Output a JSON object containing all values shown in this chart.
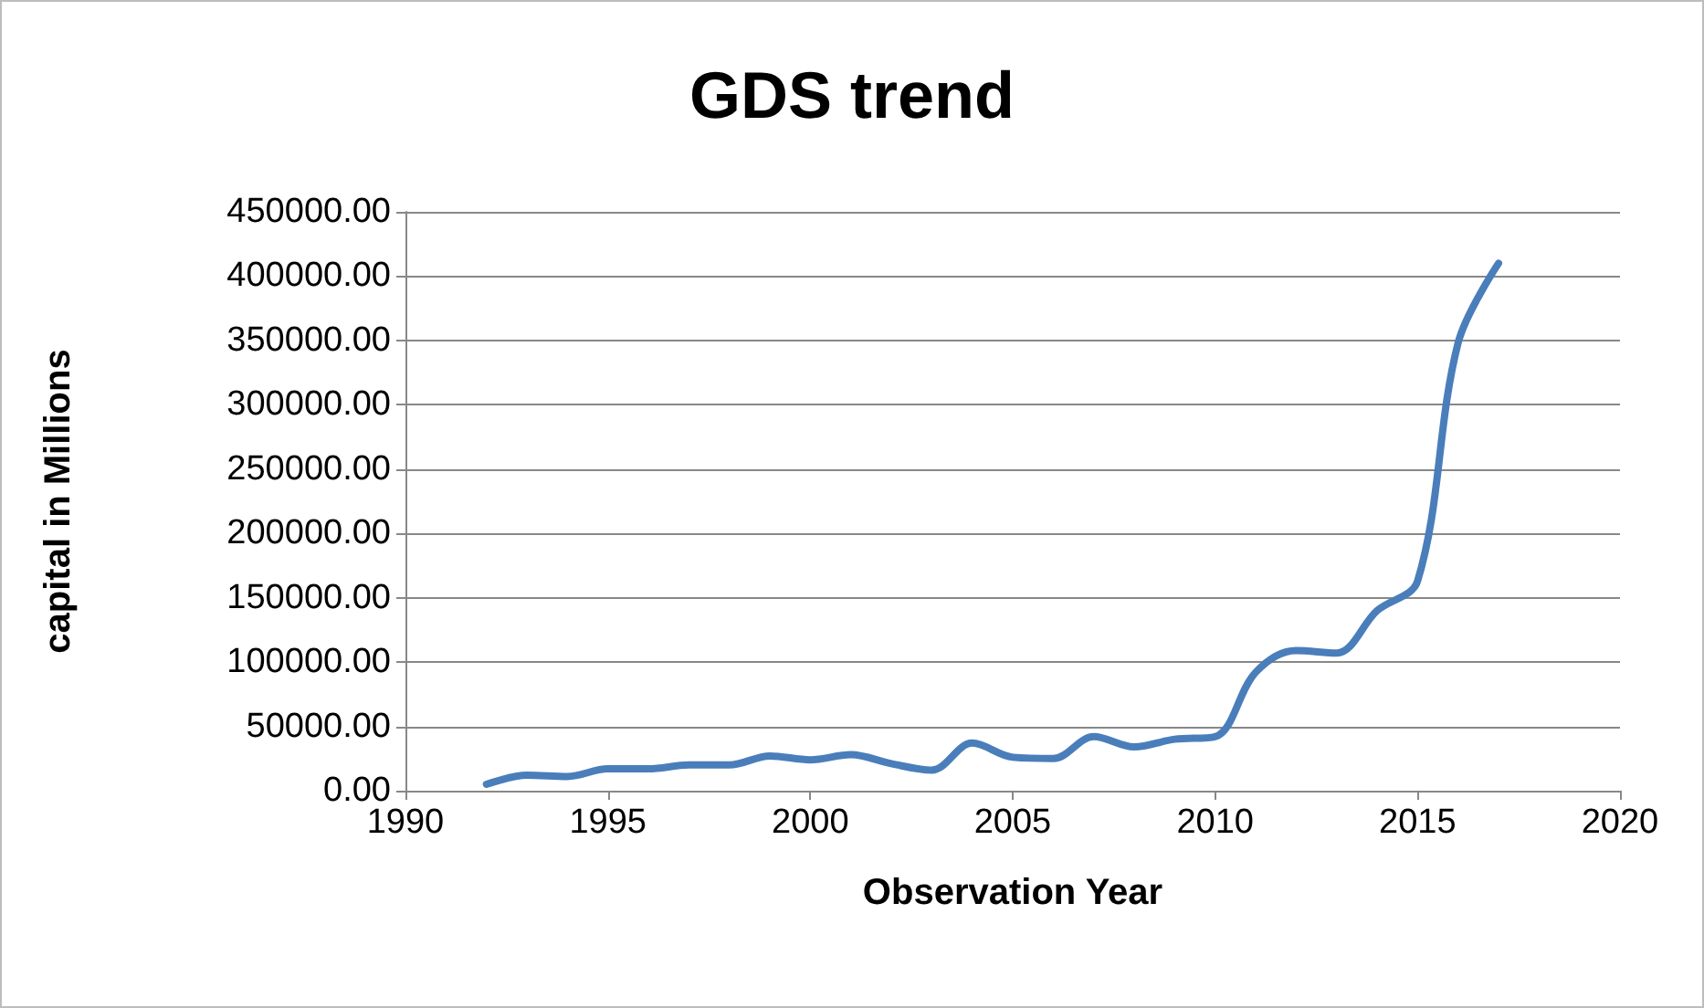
{
  "chart_data": {
    "type": "line",
    "title": "GDS trend",
    "xlabel": "Observation Year",
    "ylabel": "capital in Millions",
    "x": [
      1992,
      1993,
      1994,
      1995,
      1996,
      1997,
      1998,
      1999,
      2000,
      2001,
      2002,
      2003,
      2004,
      2005,
      2006,
      2007,
      2008,
      2009,
      2010,
      2011,
      2012,
      2013,
      2014,
      2015,
      2016,
      2017
    ],
    "series": [
      {
        "color": "#4a7ebb",
        "values": [
          5000,
          12000,
          11000,
          17000,
          17000,
          20000,
          20000,
          27000,
          24000,
          28000,
          21000,
          16000,
          37000,
          26000,
          25000,
          42000,
          34000,
          40000,
          42000,
          92000,
          109000,
          107000,
          140000,
          163000,
          348000,
          410000
        ]
      }
    ],
    "xlim": [
      1990,
      2020
    ],
    "xticks": [
      1990,
      1995,
      2000,
      2005,
      2010,
      2015,
      2020
    ],
    "ylim": [
      0,
      450000
    ],
    "yticks": [
      {
        "value": 0,
        "label": "0.00"
      },
      {
        "value": 50000,
        "label": "50000.00"
      },
      {
        "value": 100000,
        "label": "100000.00"
      },
      {
        "value": 150000,
        "label": "150000.00"
      },
      {
        "value": 200000,
        "label": "200000.00"
      },
      {
        "value": 250000,
        "label": "250000.00"
      },
      {
        "value": 300000,
        "label": "300000.00"
      },
      {
        "value": 350000,
        "label": "350000.00"
      },
      {
        "value": 400000,
        "label": "400000.00"
      },
      {
        "value": 450000,
        "label": "450000.00"
      }
    ],
    "grid": "y",
    "marker": "none",
    "line_style": "solid"
  }
}
